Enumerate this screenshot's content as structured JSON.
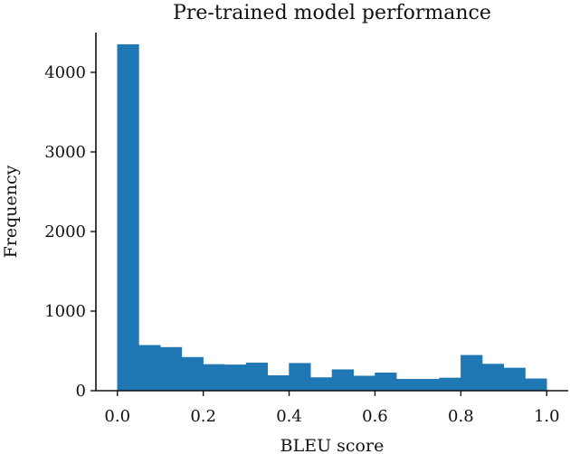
{
  "chart_data": {
    "type": "bar",
    "title": "Pre-trained model performance",
    "xlabel": "BLEU score",
    "ylabel": "Frequency",
    "bin_edges": [
      0.0,
      0.05,
      0.1,
      0.15,
      0.2,
      0.25,
      0.3,
      0.35,
      0.4,
      0.45,
      0.5,
      0.55,
      0.6,
      0.65,
      0.7,
      0.75,
      0.8,
      0.85,
      0.9,
      0.95,
      1.0
    ],
    "values": [
      4350,
      570,
      545,
      420,
      330,
      325,
      350,
      190,
      345,
      165,
      265,
      185,
      225,
      145,
      145,
      160,
      445,
      335,
      285,
      150
    ],
    "xlim": [
      -0.05,
      1.05
    ],
    "ylim": [
      0,
      4500
    ],
    "xticks": [
      0.0,
      0.2,
      0.4,
      0.6,
      0.8,
      1.0
    ],
    "xtick_labels": [
      "0.0",
      "0.2",
      "0.4",
      "0.6",
      "0.8",
      "1.0"
    ],
    "yticks": [
      0,
      1000,
      2000,
      3000,
      4000
    ],
    "ytick_labels": [
      "0",
      "1000",
      "2000",
      "3000",
      "4000"
    ],
    "bar_color": "#1f77b4",
    "grid": false,
    "legend": false
  }
}
